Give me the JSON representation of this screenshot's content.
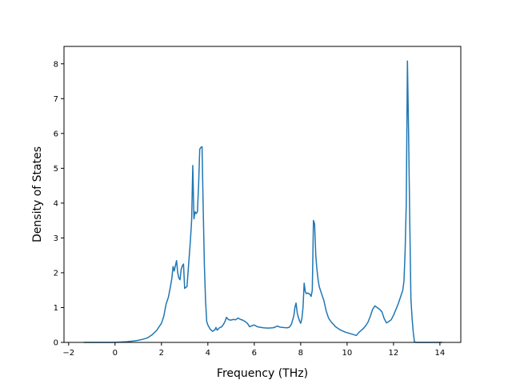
{
  "chart_data": {
    "type": "line",
    "title": "",
    "xlabel": "Frequency (THz)",
    "ylabel": "Density of States",
    "xlim": [
      -2.2,
      14.9
    ],
    "ylim": [
      0,
      8.5
    ],
    "xticks": [
      -2,
      0,
      2,
      4,
      6,
      8,
      10,
      12,
      14
    ],
    "yticks": [
      0,
      1,
      2,
      3,
      4,
      5,
      6,
      7,
      8
    ],
    "grid": false,
    "legend": "none",
    "series": [
      {
        "color": "#1f77b4",
        "x": [
          -1.35,
          -1.0,
          0.0,
          0.5,
          0.8,
          1.0,
          1.2,
          1.4,
          1.6,
          1.8,
          2.0,
          2.1,
          2.2,
          2.3,
          2.4,
          2.45,
          2.5,
          2.55,
          2.6,
          2.65,
          2.7,
          2.75,
          2.8,
          2.85,
          2.9,
          2.95,
          3.0,
          3.05,
          3.1,
          3.2,
          3.25,
          3.3,
          3.35,
          3.4,
          3.45,
          3.5,
          3.55,
          3.6,
          3.65,
          3.7,
          3.75,
          3.8,
          3.85,
          3.9,
          3.95,
          4.0,
          4.1,
          4.2,
          4.3,
          4.35,
          4.4,
          4.5,
          4.6,
          4.7,
          4.75,
          4.8,
          4.85,
          4.9,
          5.0,
          5.1,
          5.2,
          5.3,
          5.4,
          5.5,
          5.6,
          5.7,
          5.8,
          5.9,
          6.0,
          6.1,
          6.2,
          6.4,
          6.6,
          6.8,
          6.9,
          7.0,
          7.1,
          7.2,
          7.4,
          7.5,
          7.6,
          7.7,
          7.75,
          7.8,
          7.85,
          7.9,
          7.95,
          8.0,
          8.05,
          8.1,
          8.15,
          8.2,
          8.25,
          8.3,
          8.4,
          8.45,
          8.5,
          8.55,
          8.6,
          8.65,
          8.7,
          8.75,
          8.8,
          8.9,
          9.0,
          9.1,
          9.2,
          9.3,
          9.5,
          9.7,
          9.9,
          10.1,
          10.3,
          10.4,
          10.5,
          10.6,
          10.7,
          10.8,
          10.9,
          11.0,
          11.1,
          11.2,
          11.3,
          11.4,
          11.5,
          11.6,
          11.7,
          11.8,
          11.9,
          12.0,
          12.2,
          12.4,
          12.45,
          12.5,
          12.55,
          12.6,
          12.65,
          12.7,
          12.75,
          12.8,
          12.85,
          12.9,
          12.95,
          13.0,
          13.5,
          14.0,
          14.1
        ],
        "values": [
          0.0,
          0.0,
          0.0,
          0.02,
          0.04,
          0.06,
          0.09,
          0.13,
          0.22,
          0.35,
          0.55,
          0.75,
          1.1,
          1.3,
          1.65,
          1.85,
          2.18,
          2.05,
          2.2,
          2.35,
          2.0,
          1.85,
          1.8,
          2.1,
          2.2,
          2.25,
          1.55,
          1.58,
          1.6,
          2.5,
          2.95,
          3.5,
          5.08,
          3.55,
          3.75,
          3.7,
          3.75,
          4.5,
          5.55,
          5.6,
          5.62,
          3.8,
          2.2,
          1.2,
          0.6,
          0.5,
          0.38,
          0.32,
          0.36,
          0.43,
          0.35,
          0.42,
          0.45,
          0.55,
          0.62,
          0.72,
          0.68,
          0.65,
          0.64,
          0.66,
          0.65,
          0.7,
          0.66,
          0.64,
          0.6,
          0.55,
          0.45,
          0.48,
          0.5,
          0.46,
          0.44,
          0.42,
          0.41,
          0.42,
          0.44,
          0.47,
          0.44,
          0.43,
          0.42,
          0.43,
          0.52,
          0.75,
          1.0,
          1.13,
          0.85,
          0.72,
          0.62,
          0.55,
          0.68,
          1.0,
          1.7,
          1.45,
          1.4,
          1.42,
          1.38,
          1.32,
          1.5,
          3.5,
          3.4,
          2.5,
          2.1,
          1.8,
          1.6,
          1.4,
          1.2,
          0.9,
          0.7,
          0.6,
          0.45,
          0.36,
          0.3,
          0.26,
          0.22,
          0.2,
          0.28,
          0.34,
          0.4,
          0.48,
          0.58,
          0.75,
          0.95,
          1.05,
          1.0,
          0.95,
          0.88,
          0.68,
          0.56,
          0.6,
          0.65,
          0.78,
          1.1,
          1.5,
          1.75,
          2.6,
          4.0,
          8.08,
          6.0,
          3.5,
          1.25,
          0.7,
          0.3,
          0.02,
          0.0,
          0.0,
          0.0,
          0.0,
          0.0
        ]
      }
    ]
  }
}
